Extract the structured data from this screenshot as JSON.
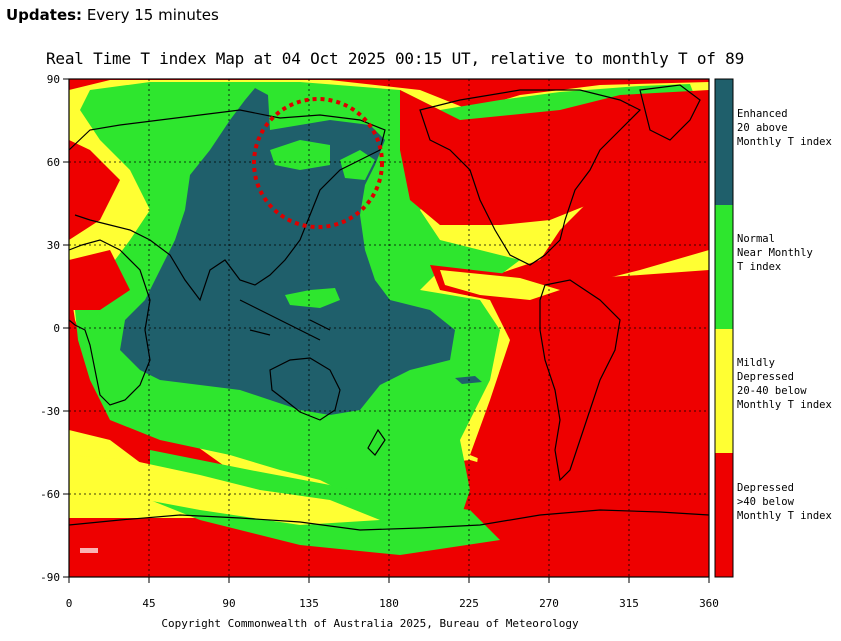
{
  "header": {
    "updates_label": "Updates:",
    "updates_value": " Every 15 minutes"
  },
  "map": {
    "title": "Real Time T index Map at 04 Oct 2025 00:15 UT, relative to monthly T of 89",
    "copyright": "Copyright Commonwealth of Australia 2025, Bureau of Meteorology",
    "lat_ticks": [
      "90",
      "60",
      "30",
      "0",
      "-30",
      "-60",
      "-90"
    ],
    "lon_ticks": [
      "0",
      "45",
      "90",
      "135",
      "180",
      "225",
      "270",
      "315",
      "360"
    ],
    "colors": {
      "enhanced": "#1f5f6b",
      "normal": "#2ee62e",
      "mildly_depressed": "#ffff33",
      "depressed": "#ee0000",
      "highlight_circle": "#dd0000"
    }
  },
  "legend": [
    {
      "label": "Enhanced\n20 above\nMonthly T index",
      "color": "#1f5f6b"
    },
    {
      "label": "Normal\nNear Monthly\nT index",
      "color": "#2ee62e"
    },
    {
      "label": "Mildly Depressed\n20-40 below\nMonthly T index",
      "color": "#ffff33"
    },
    {
      "label": "Depressed\n>40 below\nMonthly T index",
      "color": "#ee0000"
    }
  ]
}
